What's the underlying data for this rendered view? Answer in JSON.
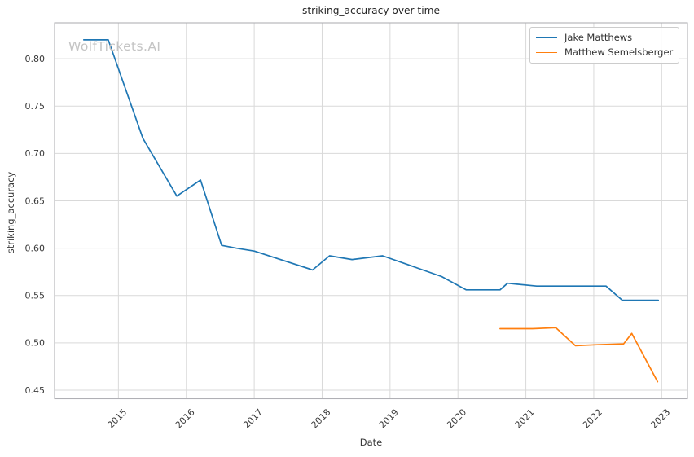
{
  "title": "striking_accuracy over time",
  "watermark": "WolfTickets.AI",
  "xlabel": "Date",
  "ylabel": "striking_accuracy",
  "legend": {
    "position": "upper-right",
    "entries": [
      {
        "label": "Jake Matthews",
        "color": "#1f77b4"
      },
      {
        "label": "Matthew Semelsberger",
        "color": "#ff7f0e"
      }
    ]
  },
  "colors": {
    "series_blue": "#1f77b4",
    "series_orange": "#ff7f0e",
    "grid": "#d9d9d9",
    "spine": "#b0b0b5",
    "title_text": "#262626",
    "tick_text": "#3a3a3a",
    "watermark_text": "#c4c4c4",
    "legend_border": "#cccccc"
  },
  "chart_data": {
    "type": "line",
    "title": "striking_accuracy over time",
    "xlabel": "Date",
    "ylabel": "striking_accuracy",
    "x_units": "decimal_year",
    "xlim": [
      2014.06,
      2023.38
    ],
    "ylim": [
      0.441,
      0.838
    ],
    "xticks": [
      2015,
      2016,
      2017,
      2018,
      2019,
      2020,
      2021,
      2022,
      2023
    ],
    "yticks": [
      0.45,
      0.5,
      0.55,
      0.6,
      0.65,
      0.7,
      0.75,
      0.8
    ],
    "grid": true,
    "legend_position": "upper right",
    "series": [
      {
        "name": "Jake Matthews",
        "color": "#1f77b4",
        "points": [
          [
            2014.49,
            0.82
          ],
          [
            2014.85,
            0.82
          ],
          [
            2015.36,
            0.716
          ],
          [
            2015.86,
            0.655
          ],
          [
            2016.21,
            0.672
          ],
          [
            2016.52,
            0.603
          ],
          [
            2016.74,
            0.6
          ],
          [
            2017.0,
            0.597
          ],
          [
            2017.86,
            0.577
          ],
          [
            2018.11,
            0.592
          ],
          [
            2018.44,
            0.588
          ],
          [
            2018.89,
            0.592
          ],
          [
            2019.76,
            0.57
          ],
          [
            2020.12,
            0.556
          ],
          [
            2020.62,
            0.556
          ],
          [
            2020.73,
            0.563
          ],
          [
            2021.16,
            0.56
          ],
          [
            2022.18,
            0.56
          ],
          [
            2022.42,
            0.545
          ],
          [
            2022.95,
            0.545
          ]
        ]
      },
      {
        "name": "Matthew Semelsberger",
        "color": "#ff7f0e",
        "points": [
          [
            2020.62,
            0.515
          ],
          [
            2021.1,
            0.515
          ],
          [
            2021.44,
            0.516
          ],
          [
            2021.73,
            0.497
          ],
          [
            2022.05,
            0.498
          ],
          [
            2022.44,
            0.499
          ],
          [
            2022.56,
            0.51
          ],
          [
            2022.94,
            0.459
          ]
        ]
      }
    ]
  }
}
